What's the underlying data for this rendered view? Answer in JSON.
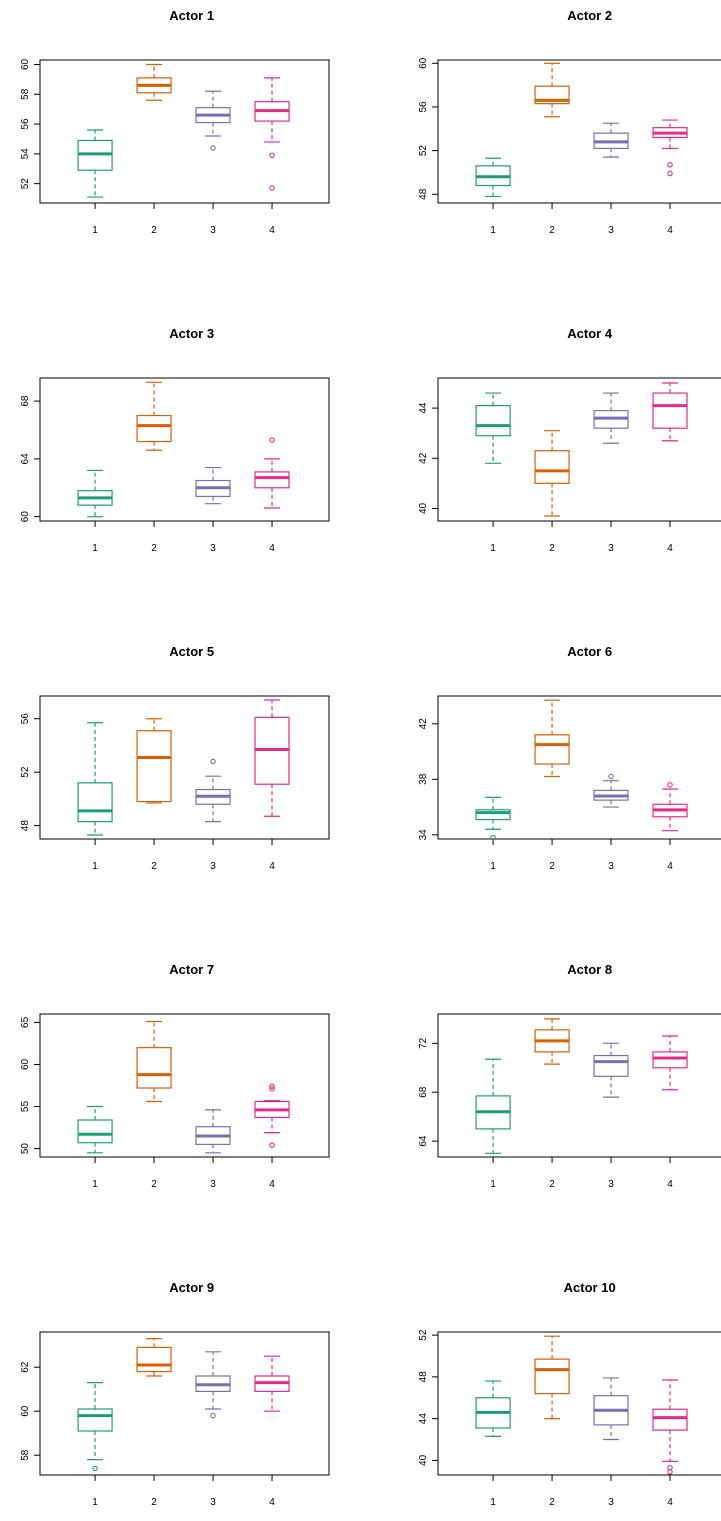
{
  "colors": [
    "#1b9e77",
    "#d95f02",
    "#7570b3",
    "#e7298a"
  ],
  "chart_data": [
    {
      "type": "boxplot",
      "title": "Actor 1",
      "categories": [
        "1",
        "2",
        "3",
        "4"
      ],
      "ylim": [
        50.7,
        60.3
      ],
      "yticks": [
        "52",
        "54",
        "56",
        "58",
        "60"
      ],
      "boxes": [
        {
          "min": 51.1,
          "q1": 52.9,
          "median": 54.0,
          "q3": 54.9,
          "max": 55.6,
          "outliers": []
        },
        {
          "min": 57.6,
          "q1": 58.1,
          "median": 58.6,
          "q3": 59.1,
          "max": 60.0,
          "outliers": []
        },
        {
          "min": 55.2,
          "q1": 56.1,
          "median": 56.6,
          "q3": 57.1,
          "max": 58.2,
          "outliers": [
            54.4
          ]
        },
        {
          "min": 54.8,
          "q1": 56.2,
          "median": 56.9,
          "q3": 57.5,
          "max": 59.1,
          "outliers": [
            53.9,
            51.7
          ]
        }
      ]
    },
    {
      "type": "boxplot",
      "title": "Actor 2",
      "categories": [
        "1",
        "2",
        "3",
        "4"
      ],
      "ylim": [
        47.2,
        60.3
      ],
      "yticks": [
        "48",
        "52",
        "56",
        "60"
      ],
      "boxes": [
        {
          "min": 47.8,
          "q1": 48.8,
          "median": 49.6,
          "q3": 50.6,
          "max": 51.3,
          "outliers": []
        },
        {
          "min": 55.1,
          "q1": 56.3,
          "median": 56.6,
          "q3": 57.9,
          "max": 60.0,
          "outliers": []
        },
        {
          "min": 51.4,
          "q1": 52.2,
          "median": 52.8,
          "q3": 53.6,
          "max": 54.5,
          "outliers": []
        },
        {
          "min": 52.2,
          "q1": 53.2,
          "median": 53.6,
          "q3": 54.1,
          "max": 54.8,
          "outliers": [
            50.7,
            49.9
          ]
        }
      ]
    },
    {
      "type": "boxplot",
      "title": "Actor 3",
      "categories": [
        "1",
        "2",
        "3",
        "4"
      ],
      "ylim": [
        59.7,
        69.6
      ],
      "yticks": [
        "60",
        "64",
        "68"
      ],
      "boxes": [
        {
          "min": 60.0,
          "q1": 60.8,
          "median": 61.3,
          "q3": 61.8,
          "max": 63.2,
          "outliers": []
        },
        {
          "min": 64.6,
          "q1": 65.2,
          "median": 66.3,
          "q3": 67.0,
          "max": 69.3,
          "outliers": []
        },
        {
          "min": 60.9,
          "q1": 61.4,
          "median": 62.0,
          "q3": 62.5,
          "max": 63.4,
          "outliers": []
        },
        {
          "min": 60.6,
          "q1": 62.0,
          "median": 62.7,
          "q3": 63.1,
          "max": 64.0,
          "outliers": [
            65.3
          ]
        }
      ]
    },
    {
      "type": "boxplot",
      "title": "Actor 4",
      "categories": [
        "1",
        "2",
        "3",
        "4"
      ],
      "ylim": [
        39.5,
        45.2
      ],
      "yticks": [
        "40",
        "42",
        "44"
      ],
      "boxes": [
        {
          "min": 41.8,
          "q1": 42.9,
          "median": 43.3,
          "q3": 44.1,
          "max": 44.6,
          "outliers": []
        },
        {
          "min": 39.7,
          "q1": 41.0,
          "median": 41.5,
          "q3": 42.3,
          "max": 43.1,
          "outliers": []
        },
        {
          "min": 42.6,
          "q1": 43.2,
          "median": 43.6,
          "q3": 43.9,
          "max": 44.6,
          "outliers": []
        },
        {
          "min": 42.7,
          "q1": 43.2,
          "median": 44.1,
          "q3": 44.6,
          "max": 45.0,
          "outliers": []
        }
      ]
    },
    {
      "type": "boxplot",
      "title": "Actor 5",
      "categories": [
        "1",
        "2",
        "3",
        "4"
      ],
      "ylim": [
        47.0,
        57.7
      ],
      "yticks": [
        "48",
        "52",
        "56"
      ],
      "boxes": [
        {
          "min": 47.3,
          "q1": 48.3,
          "median": 49.1,
          "q3": 51.2,
          "max": 55.7,
          "outliers": []
        },
        {
          "min": 49.7,
          "q1": 49.8,
          "median": 53.1,
          "q3": 55.1,
          "max": 56.0,
          "outliers": []
        },
        {
          "min": 48.3,
          "q1": 49.6,
          "median": 50.2,
          "q3": 50.7,
          "max": 51.7,
          "outliers": [
            52.8
          ]
        },
        {
          "min": 48.7,
          "q1": 51.1,
          "median": 53.7,
          "q3": 56.1,
          "max": 57.4,
          "outliers": []
        }
      ]
    },
    {
      "type": "boxplot",
      "title": "Actor 6",
      "categories": [
        "1",
        "2",
        "3",
        "4"
      ],
      "ylim": [
        33.7,
        44.0
      ],
      "yticks": [
        "34",
        "38",
        "42"
      ],
      "boxes": [
        {
          "min": 34.4,
          "q1": 35.1,
          "median": 35.6,
          "q3": 35.8,
          "max": 36.7,
          "outliers": [
            33.8
          ]
        },
        {
          "min": 38.2,
          "q1": 39.1,
          "median": 40.5,
          "q3": 41.2,
          "max": 43.7,
          "outliers": []
        },
        {
          "min": 36.0,
          "q1": 36.5,
          "median": 36.8,
          "q3": 37.2,
          "max": 37.9,
          "outliers": [
            38.2
          ]
        },
        {
          "min": 34.3,
          "q1": 35.3,
          "median": 35.8,
          "q3": 36.2,
          "max": 37.3,
          "outliers": [
            37.6
          ]
        }
      ]
    },
    {
      "type": "boxplot",
      "title": "Actor 7",
      "categories": [
        "1",
        "2",
        "3",
        "4"
      ],
      "ylim": [
        49.0,
        66.0
      ],
      "yticks": [
        "50",
        "55",
        "60",
        "65"
      ],
      "boxes": [
        {
          "min": 49.5,
          "q1": 50.7,
          "median": 51.7,
          "q3": 53.4,
          "max": 55.0,
          "outliers": []
        },
        {
          "min": 55.6,
          "q1": 57.2,
          "median": 58.8,
          "q3": 62.0,
          "max": 65.1,
          "outliers": []
        },
        {
          "min": 49.5,
          "q1": 50.5,
          "median": 51.5,
          "q3": 52.6,
          "max": 54.6,
          "outliers": []
        },
        {
          "min": 51.9,
          "q1": 53.7,
          "median": 54.6,
          "q3": 55.6,
          "max": 55.7,
          "outliers": [
            57.4,
            57.1,
            50.4
          ]
        }
      ]
    },
    {
      "type": "boxplot",
      "title": "Actor 8",
      "categories": [
        "1",
        "2",
        "3",
        "4"
      ],
      "ylim": [
        62.7,
        74.4
      ],
      "yticks": [
        "64",
        "68",
        "72"
      ],
      "boxes": [
        {
          "min": 63.0,
          "q1": 65.0,
          "median": 66.4,
          "q3": 67.7,
          "max": 70.7,
          "outliers": []
        },
        {
          "min": 70.3,
          "q1": 71.3,
          "median": 72.2,
          "q3": 73.1,
          "max": 74.0,
          "outliers": []
        },
        {
          "min": 67.6,
          "q1": 69.3,
          "median": 70.5,
          "q3": 71.0,
          "max": 72.0,
          "outliers": []
        },
        {
          "min": 68.2,
          "q1": 70.0,
          "median": 70.8,
          "q3": 71.3,
          "max": 72.6,
          "outliers": []
        }
      ]
    },
    {
      "type": "boxplot",
      "title": "Actor 9",
      "categories": [
        "1",
        "2",
        "3",
        "4"
      ],
      "ylim": [
        57.1,
        63.6
      ],
      "yticks": [
        "58",
        "60",
        "62"
      ],
      "boxes": [
        {
          "min": 57.8,
          "q1": 59.1,
          "median": 59.8,
          "q3": 60.1,
          "max": 61.3,
          "outliers": [
            57.4
          ]
        },
        {
          "min": 61.6,
          "q1": 61.8,
          "median": 62.1,
          "q3": 62.9,
          "max": 63.3,
          "outliers": []
        },
        {
          "min": 60.1,
          "q1": 60.9,
          "median": 61.2,
          "q3": 61.6,
          "max": 62.7,
          "outliers": [
            59.8
          ]
        },
        {
          "min": 60.0,
          "q1": 60.9,
          "median": 61.3,
          "q3": 61.6,
          "max": 62.5,
          "outliers": []
        }
      ]
    },
    {
      "type": "boxplot",
      "title": "Actor 10",
      "categories": [
        "1",
        "2",
        "3",
        "4"
      ],
      "ylim": [
        38.6,
        52.3
      ],
      "yticks": [
        "40",
        "44",
        "48",
        "52"
      ],
      "boxes": [
        {
          "min": 42.3,
          "q1": 43.1,
          "median": 44.6,
          "q3": 46.0,
          "max": 47.6,
          "outliers": []
        },
        {
          "min": 44.0,
          "q1": 46.4,
          "median": 48.7,
          "q3": 49.7,
          "max": 51.9,
          "outliers": []
        },
        {
          "min": 42.0,
          "q1": 43.4,
          "median": 44.8,
          "q3": 46.2,
          "max": 47.9,
          "outliers": []
        },
        {
          "min": 39.9,
          "q1": 42.9,
          "median": 44.1,
          "q3": 44.9,
          "max": 47.7,
          "outliers": [
            39.3,
            38.9
          ]
        }
      ]
    }
  ]
}
